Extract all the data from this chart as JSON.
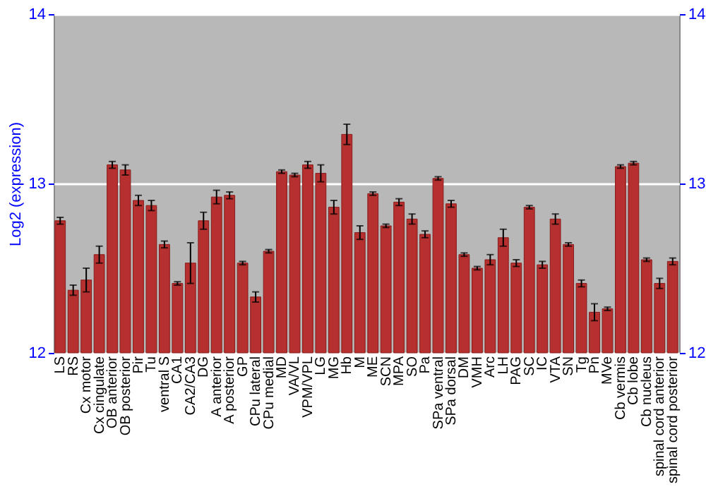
{
  "chart_data": {
    "type": "bar",
    "ylabel": "Log2 (expression)",
    "categories": [
      "LS",
      "RS",
      "Cx motor",
      "Cx cingulate",
      "OB anterior",
      "OB posterior",
      "Pir",
      "Tu",
      "ventral S",
      "CA1",
      "CA2/CA3",
      "DG",
      "A anterior",
      "A posterior",
      "GP",
      "CPu lateral",
      "CPu medial",
      "MD",
      "VA/VL",
      "VPM/VPL",
      "LG",
      "MG",
      "Hb",
      "M",
      "ME",
      "SCN",
      "MPA",
      "SO",
      "Pa",
      "SPa ventral",
      "SPa dorsal",
      "DM",
      "VMH",
      "Arc",
      "LH",
      "PAG",
      "SC",
      "IC",
      "VTA",
      "SN",
      "Tg",
      "Pn",
      "MVe",
      "Cb vermis",
      "Cb lobe",
      "Cb nucleus",
      "spinal cord anterior",
      "spinal cord posterior"
    ],
    "values": [
      12.78,
      12.37,
      12.43,
      12.58,
      13.11,
      13.08,
      12.9,
      12.87,
      12.64,
      12.41,
      12.53,
      12.78,
      12.92,
      12.93,
      12.53,
      12.33,
      12.6,
      13.07,
      13.05,
      13.11,
      13.06,
      12.86,
      13.29,
      12.71,
      12.94,
      12.75,
      12.89,
      12.79,
      12.7,
      13.03,
      12.88,
      12.58,
      12.5,
      12.55,
      12.68,
      12.53,
      12.86,
      12.52,
      12.79,
      12.64,
      12.41,
      12.24,
      12.26,
      13.1,
      13.12,
      12.55,
      12.41,
      12.54
    ],
    "errors": [
      0.02,
      0.03,
      0.07,
      0.05,
      0.02,
      0.03,
      0.03,
      0.03,
      0.02,
      0.01,
      0.12,
      0.05,
      0.04,
      0.02,
      0.01,
      0.03,
      0.01,
      0.01,
      0.01,
      0.02,
      0.05,
      0.04,
      0.06,
      0.04,
      0.01,
      0.01,
      0.02,
      0.03,
      0.02,
      0.01,
      0.02,
      0.01,
      0.01,
      0.03,
      0.05,
      0.02,
      0.01,
      0.02,
      0.03,
      0.01,
      0.02,
      0.05,
      0.01,
      0.01,
      0.01,
      0.01,
      0.03,
      0.02
    ],
    "color": "#b5302f",
    "ylim": [
      12,
      14
    ],
    "yticks": [
      12,
      13,
      14
    ],
    "y2lim": [
      12,
      14
    ],
    "y2ticks": [
      12,
      13,
      14
    ],
    "grid": "y"
  }
}
